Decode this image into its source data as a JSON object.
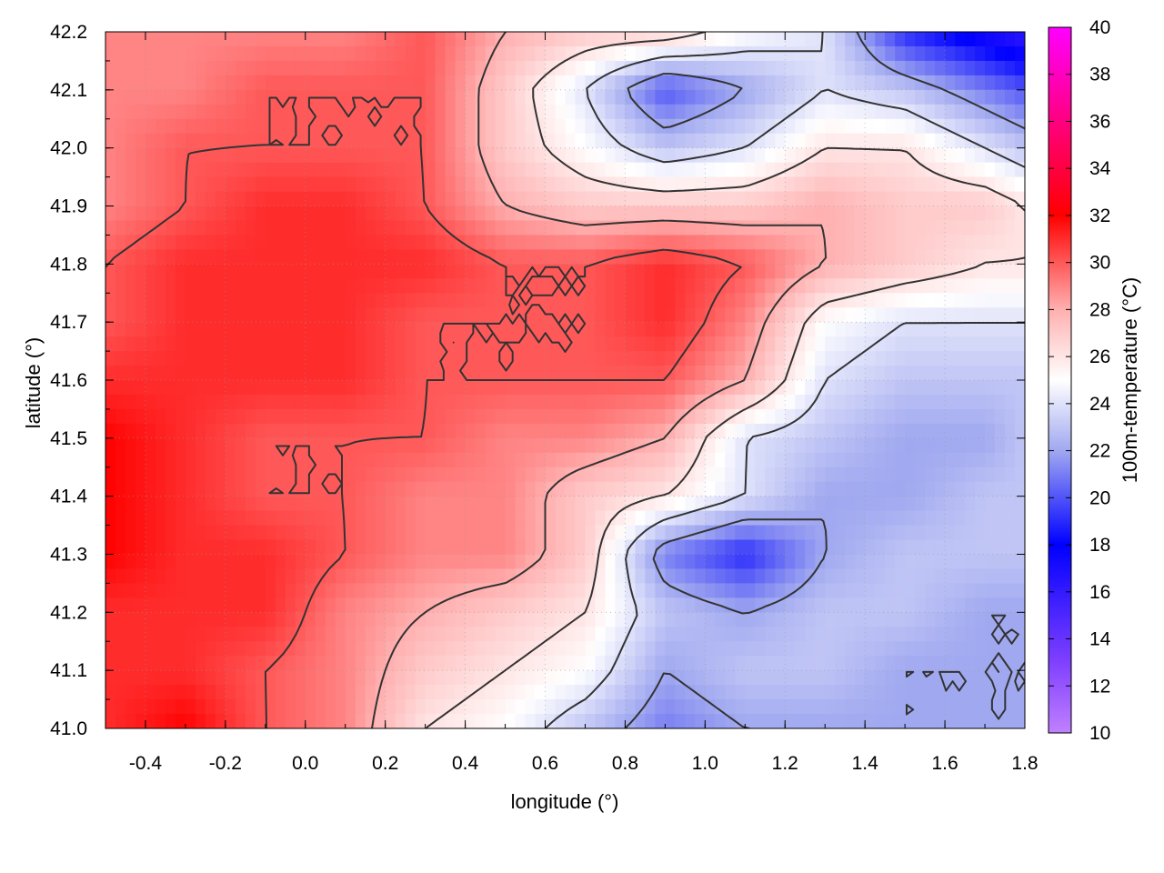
{
  "chart_data": {
    "type": "heatmap",
    "xlabel": "longitude (°)",
    "ylabel": "latitude (°)",
    "colorbar_label": "100m-temperature (°C)",
    "xlim": [
      -0.5,
      1.8
    ],
    "ylim": [
      41.0,
      42.2
    ],
    "clim": [
      10,
      40
    ],
    "grid": true,
    "x_ticks": [
      -0.4,
      -0.2,
      0.0,
      0.2,
      0.4,
      0.6,
      0.8,
      1.0,
      1.2,
      1.4,
      1.6,
      1.8
    ],
    "x_tick_labels": [
      "-0.4",
      "-0.2",
      "0.0",
      "0.2",
      "0.4",
      "0.6",
      "0.8",
      "1.0",
      "1.2",
      "1.4",
      "1.6",
      "1.8"
    ],
    "y_ticks": [
      41.0,
      41.1,
      41.2,
      41.3,
      41.4,
      41.5,
      41.6,
      41.7,
      41.8,
      41.9,
      42.0,
      42.1,
      42.2
    ],
    "y_tick_labels": [
      "41.0",
      "41.1",
      "41.2",
      "41.3",
      "41.4",
      "41.5",
      "41.6",
      "41.7",
      "41.8",
      "41.9",
      "42.0",
      "42.1",
      "42.2"
    ],
    "colorbar_ticks": [
      10,
      12,
      14,
      16,
      18,
      20,
      22,
      24,
      26,
      28,
      30,
      32,
      34,
      36,
      38,
      40
    ],
    "colorbar_tick_labels": [
      "10",
      "12",
      "14",
      "16",
      "18",
      "20",
      "22",
      "24",
      "26",
      "28",
      "30",
      "32",
      "34",
      "36",
      "38",
      "40"
    ],
    "colormap": [
      {
        "value": 10,
        "color": "#c080ff"
      },
      {
        "value": 13,
        "color": "#8040ff"
      },
      {
        "value": 18,
        "color": "#0000ff"
      },
      {
        "value": 22,
        "color": "#a0a8f0"
      },
      {
        "value": 25,
        "color": "#ffffff"
      },
      {
        "value": 28,
        "color": "#ffb0b0"
      },
      {
        "value": 32,
        "color": "#ff0000"
      },
      {
        "value": 36,
        "color": "#ff0080"
      },
      {
        "value": 40,
        "color": "#ff00ff"
      }
    ],
    "contour_color": "#333333",
    "temperature_grid": {
      "lon": [
        -0.5,
        -0.3,
        -0.1,
        0.1,
        0.3,
        0.5,
        0.7,
        0.9,
        1.1,
        1.3,
        1.5,
        1.7,
        1.8
      ],
      "lat": [
        42.2,
        42.1,
        42.0,
        41.9,
        41.8,
        41.7,
        41.6,
        41.5,
        41.4,
        41.3,
        41.2,
        41.1,
        41.0
      ],
      "values": [
        [
          29,
          29,
          29,
          29,
          30,
          28,
          27,
          27,
          25,
          24,
          19,
          17,
          16
        ],
        [
          29,
          29,
          30,
          30,
          30,
          27,
          24,
          20,
          22,
          24,
          23,
          21,
          20
        ],
        [
          29,
          30,
          30,
          30,
          30,
          27,
          25,
          23,
          24,
          26,
          26,
          24,
          23
        ],
        [
          29,
          30,
          31,
          31,
          30,
          28,
          27,
          27,
          27,
          28,
          27,
          27,
          26
        ],
        [
          30,
          31,
          31,
          31,
          31,
          30,
          30,
          31,
          30,
          28,
          27,
          26,
          26
        ],
        [
          30,
          31,
          31,
          31,
          30,
          30,
          30,
          31,
          29,
          25,
          24,
          24,
          24
        ],
        [
          31,
          31,
          31,
          31,
          30,
          30,
          30,
          30,
          28,
          24,
          23,
          23,
          23
        ],
        [
          32,
          31,
          30,
          30,
          30,
          29,
          29,
          28,
          24,
          23,
          22,
          22,
          23
        ],
        [
          32,
          31,
          30,
          30,
          29,
          29,
          27,
          26,
          24,
          22,
          22,
          23,
          23
        ],
        [
          32,
          31,
          31,
          30,
          29,
          29,
          27,
          21,
          19,
          22,
          23,
          23,
          23
        ],
        [
          31,
          31,
          31,
          29,
          28,
          27,
          26,
          23,
          22,
          23,
          23,
          22,
          22
        ],
        [
          31,
          31,
          30,
          29,
          27,
          26,
          25,
          22,
          23,
          23,
          22,
          22,
          22
        ],
        [
          31,
          32,
          30,
          29,
          26,
          25,
          23,
          21,
          22,
          22,
          22,
          22,
          22
        ]
      ]
    }
  }
}
